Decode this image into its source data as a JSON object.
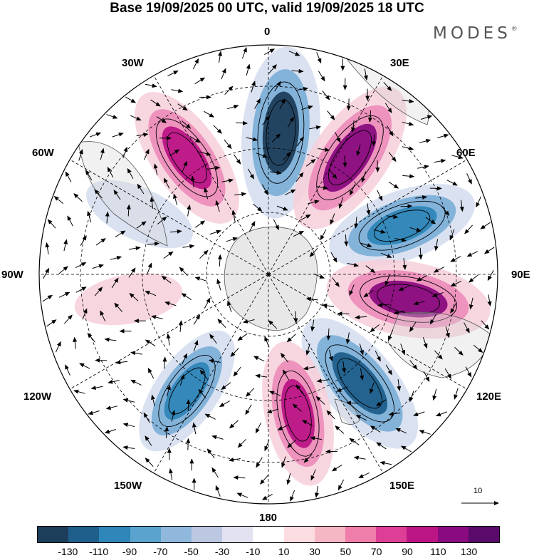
{
  "title": "Base 19/09/2025 00 UTC, valid 19/09/2025 18 UTC",
  "brand": "MODES",
  "brand_mark": "®",
  "longitude_labels": {
    "lon_0": "0",
    "lon_30e": "30E",
    "lon_60e": "60E",
    "lon_90e": "90E",
    "lon_120e": "120E",
    "lon_150e": "150E",
    "lon_180": "180",
    "lon_150w": "150W",
    "lon_120w": "120W",
    "lon_90w": "90W",
    "lon_60w": "60W",
    "lon_30w": "30W"
  },
  "reference_vector": {
    "label": "10"
  },
  "colorbar": {
    "colors": [
      "#1d3e5b",
      "#1f5f8c",
      "#2f86b8",
      "#5aa3cf",
      "#90b8dc",
      "#bcc8e2",
      "#e2e2f0",
      "#ffffff",
      "#fbdde1",
      "#f6b7c5",
      "#ef7eab",
      "#de3f96",
      "#bb1586",
      "#8a0b7f",
      "#5a0a6a"
    ],
    "ticks": [
      "-130",
      "-110",
      "-90",
      "-70",
      "-50",
      "-30",
      "-10",
      "10",
      "30",
      "50",
      "70",
      "90",
      "110",
      "130"
    ]
  },
  "anomaly_centers": [
    {
      "lon": 5,
      "value": -130,
      "color": "#1d3e5b"
    },
    {
      "lon": 35,
      "value": 120,
      "color": "#8a0b7f"
    },
    {
      "lon": 70,
      "value": -100,
      "color": "#2f86b8"
    },
    {
      "lon": 100,
      "value": 120,
      "color": "#8a0b7f"
    },
    {
      "lon": 140,
      "value": -110,
      "color": "#1f5f8c"
    },
    {
      "lon": 168,
      "value": 90,
      "color": "#bb1586"
    },
    {
      "lon": -145,
      "value": -80,
      "color": "#2f86b8"
    },
    {
      "lon": -100,
      "value": 30,
      "color": "#fbdde1"
    },
    {
      "lon": -65,
      "value": -40,
      "color": "#bcc8e2"
    },
    {
      "lon": -35,
      "value": 100,
      "color": "#bb1586"
    }
  ]
}
